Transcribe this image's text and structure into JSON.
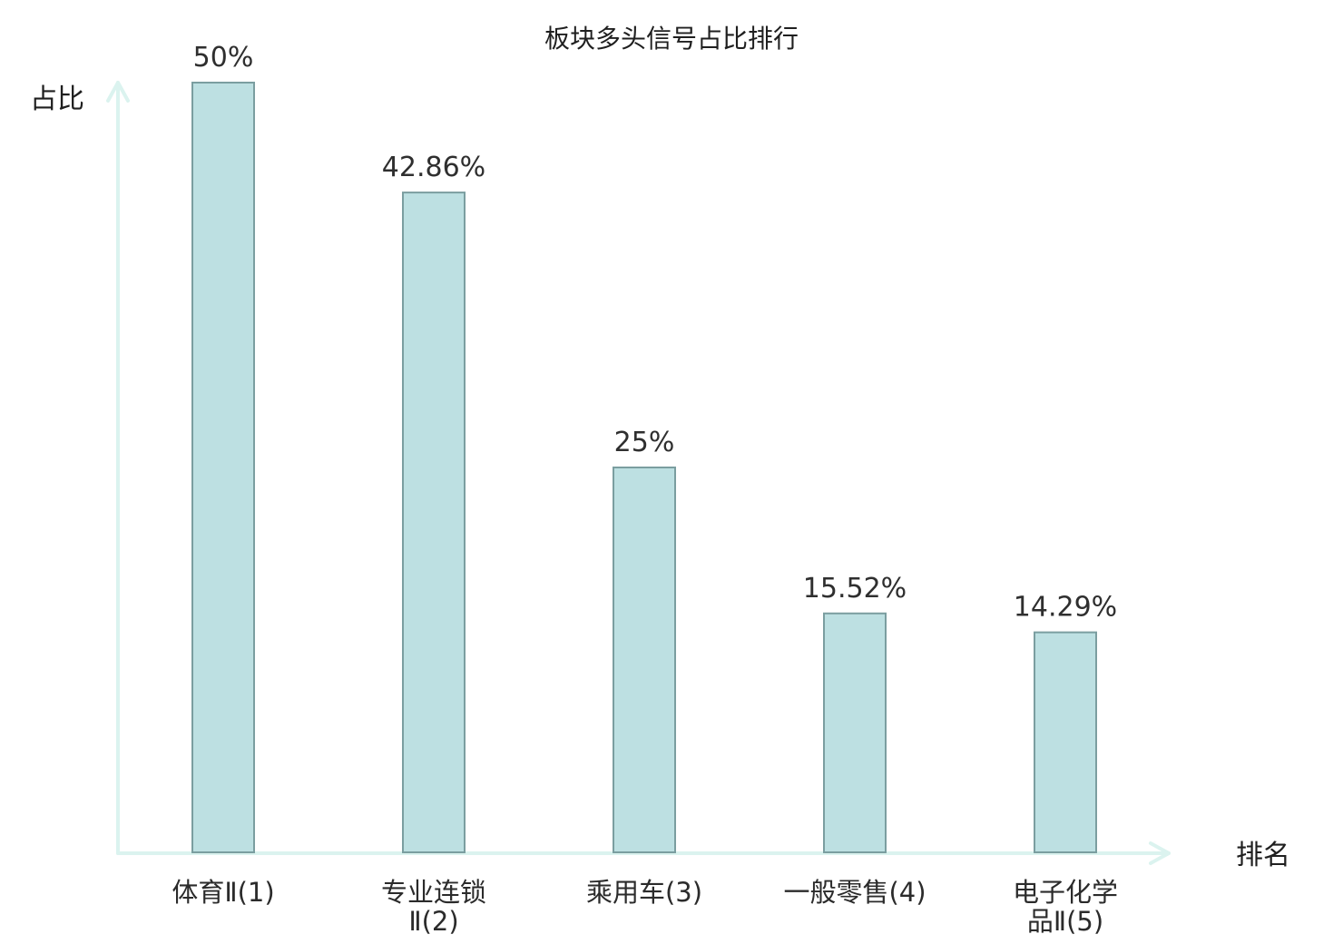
{
  "chart_data": {
    "type": "bar",
    "title": "板块多头信号占比排行",
    "xlabel": "排名",
    "ylabel": "占比",
    "ylim": [
      0,
      50
    ],
    "grid": false,
    "legend": "none",
    "series": [
      {
        "values": [
          50,
          42.86,
          25,
          15.52,
          14.29
        ]
      }
    ],
    "categories": [
      {
        "lines": [
          "体育Ⅱ(1)"
        ],
        "color": "#1f1f1f"
      },
      {
        "lines": [
          "专业连锁",
          "Ⅱ(2)"
        ],
        "color": "#1f1f1f"
      },
      {
        "lines": [
          "乘用车(3)"
        ],
        "color": "#1f1f1f"
      },
      {
        "lines": [
          "一般零售(4)"
        ],
        "color": "#1f1f1f"
      },
      {
        "lines": [
          "电子化学",
          "品Ⅱ(5)"
        ],
        "color": "#e00000"
      }
    ],
    "value_labels": [
      "50%",
      "42.86%",
      "25%",
      "15.52%",
      "14.29%"
    ],
    "bar_fill": "#bde0e2",
    "bar_stroke": "#7b9ea0",
    "axis_color": "#dbf3ef"
  }
}
